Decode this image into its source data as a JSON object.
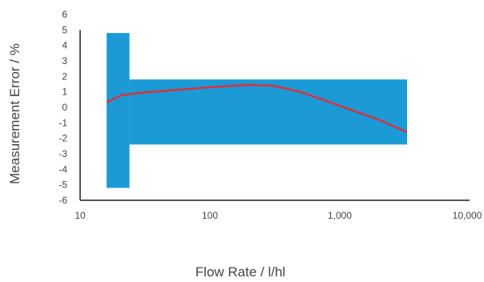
{
  "chart_data": {
    "type": "area",
    "title": "",
    "xlabel": "Flow Rate / l/hl",
    "ylabel": "Measurement Error / %",
    "x_scale": "log",
    "xlim": [
      10,
      10000
    ],
    "ylim": [
      -6,
      6
    ],
    "x_ticks": [
      10,
      100,
      1000,
      10000
    ],
    "x_tick_labels": [
      "10",
      "100",
      "1,000",
      "10,000"
    ],
    "y_ticks": [
      6,
      5,
      4,
      3,
      2,
      1,
      0,
      -1,
      -2,
      -3,
      -4,
      -5,
      -6
    ],
    "y_tick_labels": [
      "6",
      "5",
      "4",
      "3",
      "2",
      "1",
      "0",
      "-1",
      "-2",
      "-3",
      "-4",
      "-5",
      "-6"
    ],
    "grid": false,
    "colors": {
      "band": "#1b9ad6",
      "curve": "#d9323b",
      "axis": "#555555"
    },
    "series": [
      {
        "kind": "tolerance_band",
        "segments": [
          {
            "x_from": 16,
            "x_to": 24,
            "y_from": -5.2,
            "y_to": 4.8
          },
          {
            "x_from": 24,
            "x_to": 3300,
            "y_from": -2.4,
            "y_to": 1.8
          }
        ]
      },
      {
        "kind": "line",
        "x": [
          16,
          18,
          21,
          24,
          30,
          50,
          100,
          200,
          300,
          500,
          1000,
          2000,
          3300
        ],
        "y": [
          0.3,
          0.55,
          0.8,
          0.85,
          0.95,
          1.1,
          1.3,
          1.45,
          1.4,
          1.0,
          0.1,
          -0.8,
          -1.6
        ]
      }
    ]
  }
}
